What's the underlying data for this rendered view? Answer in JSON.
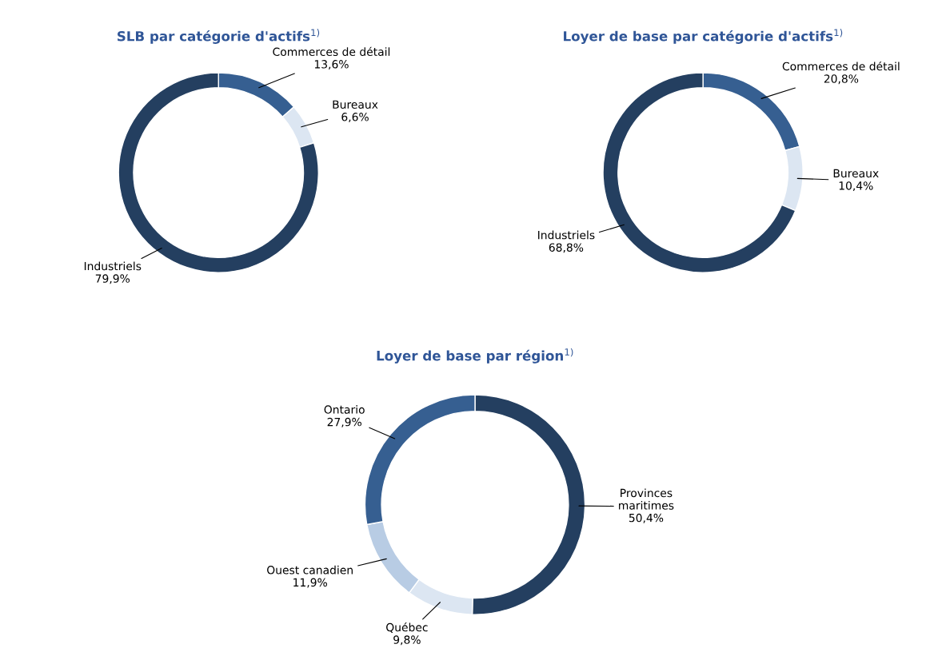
{
  "chart_data": [
    {
      "type": "donut",
      "title": "SLB par catégorie d'actifs$^{1)}$",
      "categories": [
        "Commerces de détail",
        "Bureaux",
        "Industriels"
      ],
      "values": [
        13.6,
        6.6,
        79.9
      ],
      "value_labels": [
        "13,6%",
        "6,6%",
        "79,9%"
      ],
      "colors": [
        "#365f91",
        "#dce6f2",
        "#243f60"
      ]
    },
    {
      "type": "donut",
      "title": "Loyer de base par catégorie d'actifs$^{1)}$",
      "categories": [
        "Commerces de détail",
        "Bureaux",
        "Industriels"
      ],
      "values": [
        20.8,
        10.4,
        68.8
      ],
      "value_labels": [
        "20,8%",
        "10,4%",
        "68,8%"
      ],
      "colors": [
        "#365f91",
        "#dce6f2",
        "#243f60"
      ]
    },
    {
      "type": "donut",
      "title": "Loyer de base par région$^{1)}$",
      "categories": [
        "Provinces\nmaritimes",
        "Québec",
        "Ouest canadien",
        "Ontario"
      ],
      "values": [
        50.4,
        9.8,
        11.9,
        27.9
      ],
      "value_labels": [
        "50,4%",
        "9,8%",
        "11,9%",
        "27,9%"
      ],
      "colors": [
        "#243f60",
        "#dce6f2",
        "#b8cce4",
        "#365f91"
      ]
    }
  ]
}
